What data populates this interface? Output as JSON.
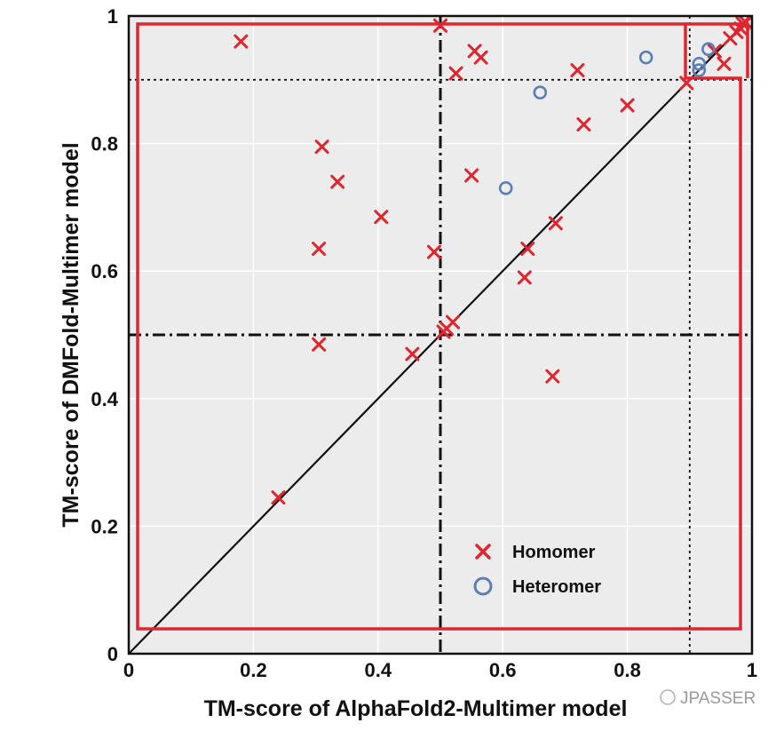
{
  "chart_data": {
    "type": "scatter",
    "title": "",
    "xlabel": "TM-score of AlphaFold2-Multimer model",
    "ylabel": "TM-score of DMFold-Multimer model",
    "xlim": [
      0,
      1
    ],
    "ylim": [
      0,
      1
    ],
    "xticks": [
      "0",
      "0.2",
      "0.4",
      "0.6",
      "0.8",
      "1"
    ],
    "yticks": [
      "0",
      "0.2",
      "0.4",
      "0.6",
      "0.8",
      "1"
    ],
    "grid": true,
    "diagonal": true,
    "threshold_lines": [
      0.5,
      0.9
    ],
    "legend_position": "bottom-center",
    "series": [
      {
        "name": "Homomer",
        "marker": "x",
        "color": "#e0252f",
        "points": [
          [
            0.18,
            0.96
          ],
          [
            0.5,
            0.985
          ],
          [
            0.555,
            0.945
          ],
          [
            0.565,
            0.935
          ],
          [
            0.525,
            0.91
          ],
          [
            0.72,
            0.915
          ],
          [
            0.8,
            0.86
          ],
          [
            0.73,
            0.83
          ],
          [
            0.31,
            0.795
          ],
          [
            0.335,
            0.74
          ],
          [
            0.55,
            0.75
          ],
          [
            0.405,
            0.685
          ],
          [
            0.685,
            0.675
          ],
          [
            0.64,
            0.635
          ],
          [
            0.305,
            0.635
          ],
          [
            0.49,
            0.63
          ],
          [
            0.635,
            0.59
          ],
          [
            0.52,
            0.52
          ],
          [
            0.51,
            0.51
          ],
          [
            0.505,
            0.505
          ],
          [
            0.305,
            0.485
          ],
          [
            0.455,
            0.47
          ],
          [
            0.68,
            0.435
          ],
          [
            0.24,
            0.245
          ],
          [
            0.895,
            0.895
          ],
          [
            0.955,
            0.925
          ],
          [
            0.94,
            0.945
          ],
          [
            0.965,
            0.965
          ],
          [
            0.975,
            0.975
          ],
          [
            0.982,
            0.98
          ],
          [
            0.99,
            0.99
          ],
          [
            0.985,
            0.988
          ]
        ]
      },
      {
        "name": "Heteromer",
        "marker": "o",
        "color": "#5a7fb5",
        "points": [
          [
            0.83,
            0.935
          ],
          [
            0.66,
            0.88
          ],
          [
            0.605,
            0.73
          ],
          [
            0.93,
            0.948
          ],
          [
            0.915,
            0.925
          ],
          [
            0.915,
            0.915
          ]
        ]
      }
    ],
    "colors": {
      "homomer": "#e0252f",
      "heteromer": "#5a7fb5",
      "box": "#e0252f",
      "background": "#ececec"
    }
  },
  "watermark": "JPASSER"
}
